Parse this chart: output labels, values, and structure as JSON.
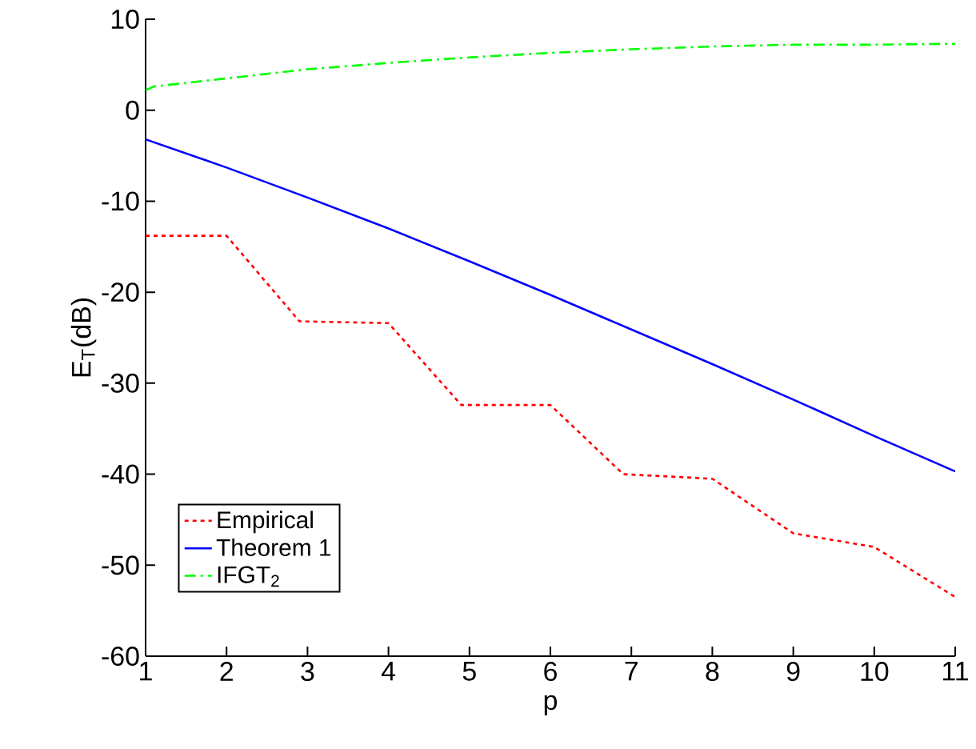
{
  "chart_data": {
    "type": "line",
    "xlabel": "p",
    "ylabel": "E$_{T}$(dB)",
    "xlim": [
      1,
      11
    ],
    "ylim": [
      -60,
      10
    ],
    "xticks": [
      1,
      2,
      3,
      4,
      5,
      6,
      7,
      8,
      9,
      10,
      11
    ],
    "yticks": [
      -60,
      -50,
      -40,
      -30,
      -20,
      -10,
      0,
      10
    ],
    "grid": false,
    "legend": "bottom left",
    "marker": "none",
    "series": [
      {
        "name": "Empirical",
        "color": "#ff0000",
        "line_style": "dotted",
        "x": [
          1,
          2,
          2.9,
          4,
          4.9,
          6,
          6.9,
          8,
          9,
          10,
          11
        ],
        "values": [
          -13.8,
          -13.8,
          -23.2,
          -23.4,
          -32.4,
          -32.4,
          -40.0,
          -40.5,
          -46.5,
          -48.0,
          -53.5
        ]
      },
      {
        "name": "Theorem 1",
        "color": "#0000ff",
        "line_style": "solid",
        "x": [
          1,
          2,
          3,
          4,
          5,
          6,
          7,
          8,
          9,
          10,
          11
        ],
        "values": [
          -3.2,
          -6.3,
          -9.6,
          -13.0,
          -16.6,
          -20.3,
          -24.1,
          -27.9,
          -31.8,
          -35.8,
          -39.7
        ]
      },
      {
        "name": "IFGT$_{2}$",
        "color": "#00ff00",
        "line_style": "dashdot",
        "x": [
          1,
          1.1,
          2,
          3,
          4,
          5,
          6,
          7,
          8,
          9,
          10,
          11
        ],
        "values": [
          2.2,
          2.6,
          3.5,
          4.5,
          5.2,
          5.8,
          6.3,
          6.7,
          7.0,
          7.2,
          7.2,
          7.3
        ]
      }
    ]
  }
}
